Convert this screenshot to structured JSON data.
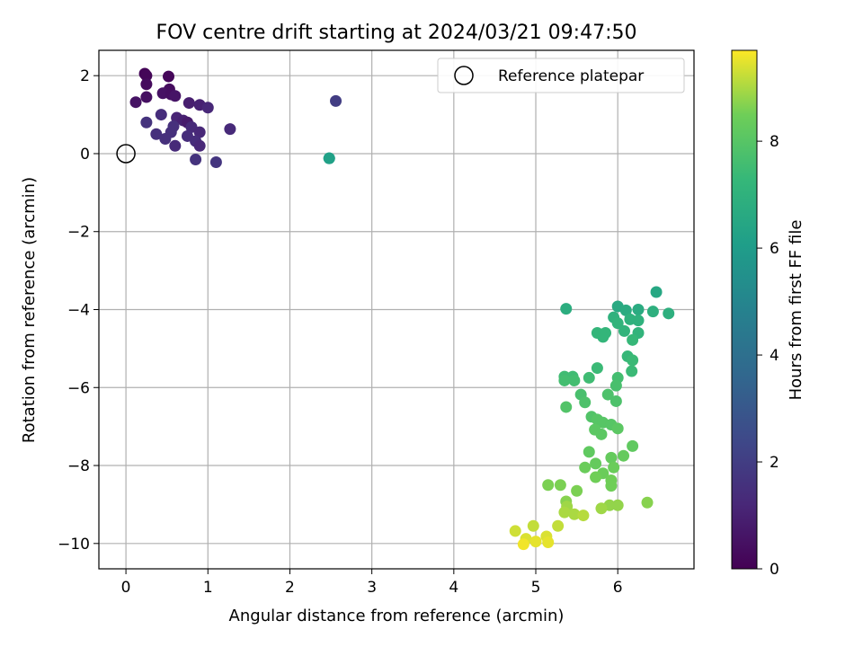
{
  "chart_data": {
    "type": "scatter",
    "title": "FOV centre drift starting at 2024/03/21 09:47:50",
    "xlabel": "Angular distance from reference (arcmin)",
    "ylabel": "Rotation from reference (arcmin)",
    "xlim": [
      -0.33,
      6.93
    ],
    "ylim": [
      -10.65,
      2.65
    ],
    "xticks": [
      0,
      1,
      2,
      3,
      4,
      5,
      6
    ],
    "yticks": [
      -10,
      -8,
      -6,
      -4,
      -2,
      0,
      2
    ],
    "grid": true,
    "legend": {
      "placement": "upper-right",
      "entries": [
        "Reference platepar"
      ]
    },
    "reference_point": {
      "x": 0,
      "y": 0
    },
    "colorbar": {
      "label": "Hours from first FF file",
      "range": [
        0,
        9.7
      ],
      "ticks": [
        0,
        2,
        4,
        6,
        8
      ],
      "colormap": "viridis"
    },
    "points": [
      {
        "x": 0.23,
        "y": 2.05,
        "c": 0.1
      },
      {
        "x": 0.25,
        "y": 2.0,
        "c": 0.15
      },
      {
        "x": 0.52,
        "y": 1.98,
        "c": 0.2
      },
      {
        "x": 0.25,
        "y": 1.78,
        "c": 0.3
      },
      {
        "x": 0.53,
        "y": 1.65,
        "c": 0.35
      },
      {
        "x": 0.45,
        "y": 1.55,
        "c": 0.5
      },
      {
        "x": 0.55,
        "y": 1.52,
        "c": 0.4
      },
      {
        "x": 0.6,
        "y": 1.48,
        "c": 0.6
      },
      {
        "x": 0.25,
        "y": 1.45,
        "c": 0.45
      },
      {
        "x": 0.12,
        "y": 1.32,
        "c": 0.55
      },
      {
        "x": 0.77,
        "y": 1.3,
        "c": 0.9
      },
      {
        "x": 0.9,
        "y": 1.25,
        "c": 1.0
      },
      {
        "x": 1.0,
        "y": 1.18,
        "c": 1.2
      },
      {
        "x": 0.43,
        "y": 1.0,
        "c": 1.4
      },
      {
        "x": 0.62,
        "y": 0.92,
        "c": 1.1
      },
      {
        "x": 0.7,
        "y": 0.85,
        "c": 1.0
      },
      {
        "x": 0.75,
        "y": 0.8,
        "c": 0.8
      },
      {
        "x": 0.25,
        "y": 0.8,
        "c": 1.6
      },
      {
        "x": 0.58,
        "y": 0.7,
        "c": 1.5
      },
      {
        "x": 0.8,
        "y": 0.68,
        "c": 1.3
      },
      {
        "x": 1.27,
        "y": 0.63,
        "c": 1.3
      },
      {
        "x": 0.9,
        "y": 0.55,
        "c": 1.2
      },
      {
        "x": 0.55,
        "y": 0.55,
        "c": 1.5
      },
      {
        "x": 0.37,
        "y": 0.5,
        "c": 1.5
      },
      {
        "x": 0.75,
        "y": 0.45,
        "c": 1.4
      },
      {
        "x": 0.48,
        "y": 0.38,
        "c": 1.5
      },
      {
        "x": 0.85,
        "y": 0.32,
        "c": 1.4
      },
      {
        "x": 0.6,
        "y": 0.2,
        "c": 1.3
      },
      {
        "x": 0.9,
        "y": 0.2,
        "c": 1.2
      },
      {
        "x": 0.85,
        "y": -0.15,
        "c": 1.6
      },
      {
        "x": 1.1,
        "y": -0.22,
        "c": 1.7
      },
      {
        "x": 2.56,
        "y": 1.35,
        "c": 2.0
      },
      {
        "x": 2.48,
        "y": -0.12,
        "c": 5.8
      },
      {
        "x": 2.48,
        "y": -0.12,
        "c": 6.2
      },
      {
        "x": 6.47,
        "y": -3.55,
        "c": 6.5
      },
      {
        "x": 6.0,
        "y": -3.92,
        "c": 6.6
      },
      {
        "x": 6.1,
        "y": -4.02,
        "c": 6.7
      },
      {
        "x": 6.25,
        "y": -4.0,
        "c": 6.7
      },
      {
        "x": 5.37,
        "y": -3.98,
        "c": 6.8
      },
      {
        "x": 6.43,
        "y": -4.05,
        "c": 6.9
      },
      {
        "x": 6.62,
        "y": -4.1,
        "c": 6.9
      },
      {
        "x": 5.95,
        "y": -4.2,
        "c": 7.0
      },
      {
        "x": 6.15,
        "y": -4.25,
        "c": 7.0
      },
      {
        "x": 6.25,
        "y": -4.28,
        "c": 7.0
      },
      {
        "x": 6.0,
        "y": -4.35,
        "c": 7.1
      },
      {
        "x": 6.08,
        "y": -4.55,
        "c": 7.1
      },
      {
        "x": 6.25,
        "y": -4.6,
        "c": 7.1
      },
      {
        "x": 5.75,
        "y": -4.6,
        "c": 7.2
      },
      {
        "x": 5.85,
        "y": -4.6,
        "c": 7.2
      },
      {
        "x": 5.82,
        "y": -4.7,
        "c": 7.2
      },
      {
        "x": 6.18,
        "y": -4.78,
        "c": 7.3
      },
      {
        "x": 6.12,
        "y": -5.2,
        "c": 7.3
      },
      {
        "x": 6.18,
        "y": -5.3,
        "c": 7.4
      },
      {
        "x": 5.75,
        "y": -5.5,
        "c": 7.4
      },
      {
        "x": 6.17,
        "y": -5.58,
        "c": 7.4
      },
      {
        "x": 5.35,
        "y": -5.72,
        "c": 7.5
      },
      {
        "x": 5.45,
        "y": -5.72,
        "c": 7.5
      },
      {
        "x": 5.65,
        "y": -5.75,
        "c": 7.5
      },
      {
        "x": 6.0,
        "y": -5.75,
        "c": 7.6
      },
      {
        "x": 5.35,
        "y": -5.82,
        "c": 7.6
      },
      {
        "x": 5.47,
        "y": -5.82,
        "c": 7.6
      },
      {
        "x": 5.98,
        "y": -5.95,
        "c": 7.7
      },
      {
        "x": 5.55,
        "y": -6.18,
        "c": 7.7
      },
      {
        "x": 5.88,
        "y": -6.18,
        "c": 7.8
      },
      {
        "x": 5.98,
        "y": -6.35,
        "c": 7.8
      },
      {
        "x": 5.6,
        "y": -6.38,
        "c": 7.8
      },
      {
        "x": 5.37,
        "y": -6.5,
        "c": 7.9
      },
      {
        "x": 5.68,
        "y": -6.75,
        "c": 7.9
      },
      {
        "x": 5.75,
        "y": -6.82,
        "c": 8.0
      },
      {
        "x": 5.82,
        "y": -6.9,
        "c": 8.0
      },
      {
        "x": 5.92,
        "y": -6.95,
        "c": 8.0
      },
      {
        "x": 5.72,
        "y": -7.08,
        "c": 8.1
      },
      {
        "x": 6.0,
        "y": -7.05,
        "c": 8.1
      },
      {
        "x": 5.8,
        "y": -7.2,
        "c": 8.1
      },
      {
        "x": 6.18,
        "y": -7.5,
        "c": 8.2
      },
      {
        "x": 5.65,
        "y": -7.65,
        "c": 8.2
      },
      {
        "x": 6.07,
        "y": -7.75,
        "c": 8.3
      },
      {
        "x": 5.92,
        "y": -7.8,
        "c": 8.3
      },
      {
        "x": 5.73,
        "y": -7.95,
        "c": 8.3
      },
      {
        "x": 5.6,
        "y": -8.05,
        "c": 8.4
      },
      {
        "x": 5.95,
        "y": -8.05,
        "c": 8.4
      },
      {
        "x": 5.82,
        "y": -8.2,
        "c": 8.4
      },
      {
        "x": 5.73,
        "y": -8.3,
        "c": 8.5
      },
      {
        "x": 5.92,
        "y": -8.38,
        "c": 8.5
      },
      {
        "x": 5.92,
        "y": -8.52,
        "c": 8.5
      },
      {
        "x": 5.15,
        "y": -8.5,
        "c": 8.6
      },
      {
        "x": 5.3,
        "y": -8.5,
        "c": 8.6
      },
      {
        "x": 5.5,
        "y": -8.65,
        "c": 8.6
      },
      {
        "x": 5.37,
        "y": -8.92,
        "c": 8.7
      },
      {
        "x": 6.36,
        "y": -8.95,
        "c": 8.7
      },
      {
        "x": 5.9,
        "y": -9.02,
        "c": 8.8
      },
      {
        "x": 6.0,
        "y": -9.02,
        "c": 8.8
      },
      {
        "x": 5.38,
        "y": -9.05,
        "c": 8.9
      },
      {
        "x": 5.8,
        "y": -9.1,
        "c": 8.9
      },
      {
        "x": 5.35,
        "y": -9.2,
        "c": 9.0
      },
      {
        "x": 5.47,
        "y": -9.25,
        "c": 9.0
      },
      {
        "x": 5.58,
        "y": -9.28,
        "c": 9.1
      },
      {
        "x": 5.27,
        "y": -9.55,
        "c": 9.2
      },
      {
        "x": 4.97,
        "y": -9.55,
        "c": 9.2
      },
      {
        "x": 4.75,
        "y": -9.68,
        "c": 9.3
      },
      {
        "x": 5.13,
        "y": -9.82,
        "c": 9.4
      },
      {
        "x": 4.88,
        "y": -9.88,
        "c": 9.4
      },
      {
        "x": 5.0,
        "y": -9.95,
        "c": 9.5
      },
      {
        "x": 5.15,
        "y": -9.97,
        "c": 9.5
      },
      {
        "x": 4.85,
        "y": -10.02,
        "c": 9.6
      }
    ]
  }
}
